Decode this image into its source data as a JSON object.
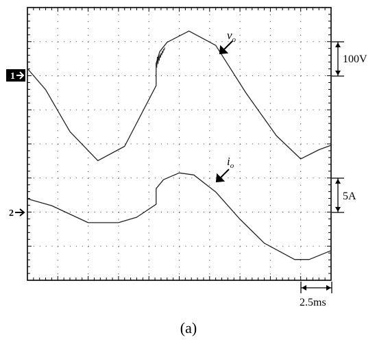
{
  "chart_data": {
    "type": "line",
    "grid": true,
    "grid_divisions": {
      "horizontal": 10,
      "vertical": 8
    },
    "time_per_division_ms": 2.5,
    "x_range_ms": [
      0,
      25
    ],
    "series": [
      {
        "channel_marker": "1",
        "label_main": "v",
        "label_sub": "o",
        "scale_label": "100V",
        "volts_per_division": 100,
        "x_ms": [
          0,
          1.5,
          3.5,
          5.8,
          8,
          10.6,
          10.6,
          10.9,
          11.5,
          13.3,
          15.5,
          18,
          20.5,
          22.5,
          24,
          25
        ],
        "y_V": [
          20,
          -42,
          -165,
          -250,
          -208,
          -30,
          35,
          70,
          97,
          130,
          88,
          -52,
          -177,
          -245,
          -218,
          -205
        ]
      },
      {
        "channel_marker": "2",
        "label_main": "i",
        "label_sub": "o",
        "scale_label": "5A",
        "amps_per_division": 5,
        "x_ms": [
          0,
          2,
          5,
          7.5,
          9,
          10.6,
          10.6,
          11.2,
          12.5,
          13.7,
          15.5,
          17.5,
          19.5,
          22,
          23.2,
          25
        ],
        "y_A": [
          2,
          1,
          -1.5,
          -1.5,
          -0.7,
          1.2,
          3.5,
          4.8,
          5.8,
          5.5,
          3,
          -1,
          -4.5,
          -6.9,
          -6.9,
          -5.6
        ]
      }
    ],
    "time_scale_label": "2.5ms",
    "caption": "(a)"
  },
  "colors": {
    "trace": "#222222",
    "grid": "#555555",
    "frame": "#000000",
    "marker_bg": "#000000",
    "marker_text": "#ffffff"
  }
}
